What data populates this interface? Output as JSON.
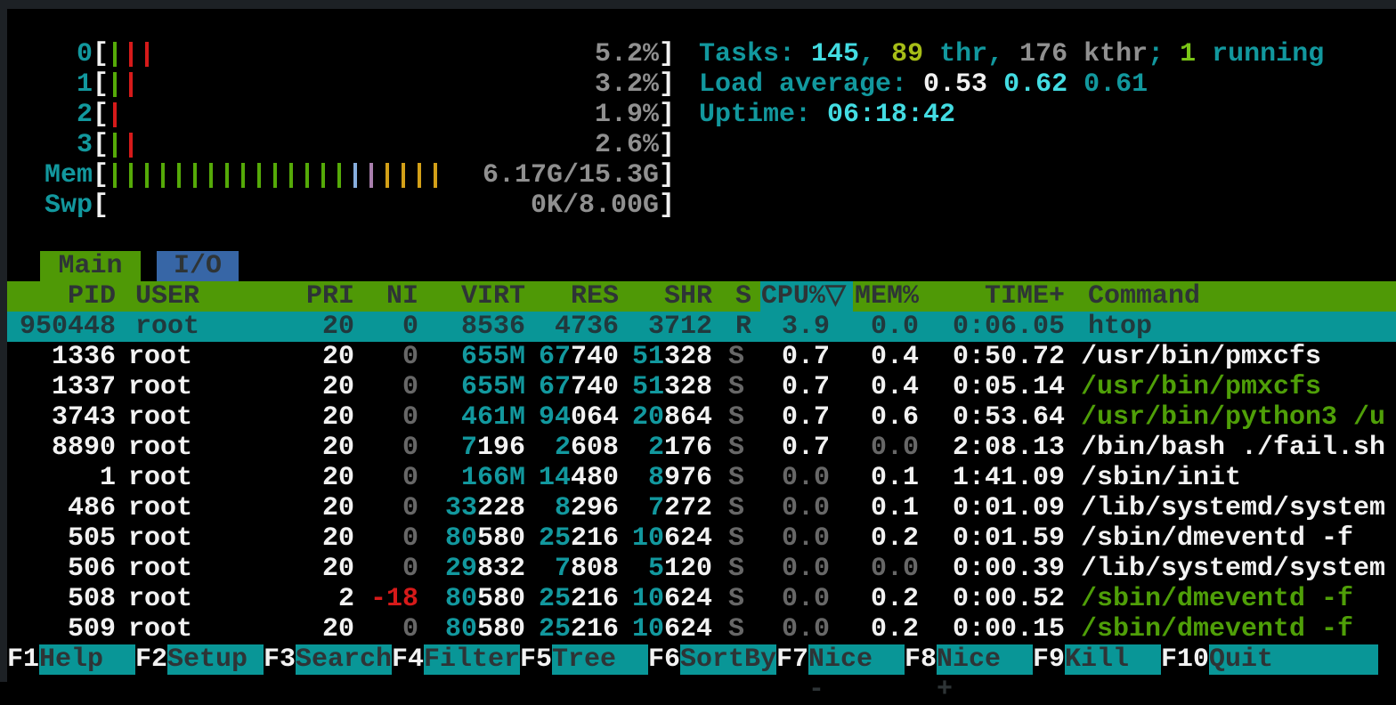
{
  "app": "htop",
  "palette": {
    "background": "#000000",
    "teal_text": "#12989e",
    "bright_cyan": "#43dce2",
    "white": "#f2f2f2",
    "gray": "#909090",
    "green_command": "#4f9f08",
    "red": "#d61a1a",
    "header_green_bg": "#4f9906",
    "tab_blue_bg": "#3766a6",
    "selection_teal_bg": "#099697",
    "mem_bar_blue": "#87aede",
    "mem_bar_purple": "#a97fad",
    "mem_bar_yellow": "#d3a018"
  },
  "meters": [
    {
      "label": "0",
      "value_text": "5.2%",
      "bars": [
        "green",
        "red",
        "red"
      ]
    },
    {
      "label": "1",
      "value_text": "3.2%",
      "bars": [
        "green",
        "red"
      ]
    },
    {
      "label": "2",
      "value_text": "1.9%",
      "bars": [
        "red"
      ]
    },
    {
      "label": "3",
      "value_text": "2.6%",
      "bars": [
        "green",
        "red"
      ]
    },
    {
      "label": "Mem",
      "value_text": "6.17G/15.3G",
      "bars": [
        "green",
        "green",
        "green",
        "green",
        "green",
        "green",
        "green",
        "green",
        "green",
        "green",
        "green",
        "green",
        "green",
        "green",
        "green",
        "blue",
        "purple",
        "yellow",
        "yellow",
        "yellow",
        "yellow"
      ]
    },
    {
      "label": "Swp",
      "value_text": "0K/8.00G",
      "bars": []
    }
  ],
  "header_info": {
    "lines": [
      {
        "name": "tasks-summary",
        "segments": [
          [
            "Tasks: ",
            "teal"
          ],
          [
            "145",
            "bcyan"
          ],
          [
            ", ",
            "teal"
          ],
          [
            "89",
            "lime"
          ],
          [
            " thr",
            "teal"
          ],
          [
            ", ",
            "teal"
          ],
          [
            "176 kthr",
            "gray"
          ],
          [
            "; ",
            "teal"
          ],
          [
            "1",
            "lgreen"
          ],
          [
            " running",
            "teal"
          ]
        ]
      },
      {
        "name": "load-average",
        "segments": [
          [
            "Load average: ",
            "teal"
          ],
          [
            "0.53 ",
            "white"
          ],
          [
            "0.62 ",
            "bcyan"
          ],
          [
            "0.61",
            "teal"
          ]
        ]
      },
      {
        "name": "uptime",
        "segments": [
          [
            "Uptime: ",
            "teal"
          ],
          [
            "06:18:42",
            "bcyan"
          ]
        ]
      }
    ]
  },
  "tabs": [
    {
      "label": "Main",
      "active": true
    },
    {
      "label": "I/O",
      "active": false
    }
  ],
  "table": {
    "sort_column": "cpu",
    "sort_arrow": "▽",
    "columns": [
      {
        "key": "pid",
        "label": "PID"
      },
      {
        "key": "user",
        "label": "USER"
      },
      {
        "key": "pri",
        "label": "PRI"
      },
      {
        "key": "ni",
        "label": "NI"
      },
      {
        "key": "virt",
        "label": "VIRT"
      },
      {
        "key": "res",
        "label": "RES"
      },
      {
        "key": "shr",
        "label": "SHR"
      },
      {
        "key": "s",
        "label": "S"
      },
      {
        "key": "cpu",
        "label": "CPU%"
      },
      {
        "key": "mem",
        "label": "MEM%"
      },
      {
        "key": "time",
        "label": "TIME+"
      },
      {
        "key": "cmd",
        "label": "Command"
      }
    ],
    "rows": [
      {
        "selected": true,
        "pid": "950448",
        "user": "root",
        "pri": "20",
        "ni": [
          [
            "0",
            "dim"
          ]
        ],
        "virt": [
          [
            "8536",
            "white"
          ]
        ],
        "res": [
          [
            "4736",
            "white"
          ]
        ],
        "shr": [
          [
            "3712",
            "white"
          ]
        ],
        "s": [
          [
            "R",
            "dim"
          ]
        ],
        "cpu": [
          [
            "3.9",
            "white"
          ]
        ],
        "mem": [
          [
            "0.0",
            "dim"
          ]
        ],
        "time": [
          [
            "0:06.05",
            "white"
          ]
        ],
        "cmd": [
          [
            "htop",
            "white"
          ]
        ]
      },
      {
        "pid": "1336",
        "user": "root",
        "pri": "20",
        "ni": [
          [
            "0",
            "dim"
          ]
        ],
        "virt": [
          [
            "655M",
            "cyan"
          ]
        ],
        "res": [
          [
            "67",
            "cyan"
          ],
          [
            "740",
            "white"
          ]
        ],
        "shr": [
          [
            "51",
            "cyan"
          ],
          [
            "328",
            "white"
          ]
        ],
        "s": [
          [
            "S",
            "dim"
          ]
        ],
        "cpu": [
          [
            "0.7",
            "white"
          ]
        ],
        "mem": [
          [
            "0.4",
            "white"
          ]
        ],
        "time": [
          [
            "0:50.72",
            "white"
          ]
        ],
        "cmd": [
          [
            "/usr/bin/pmxcfs",
            "white"
          ]
        ]
      },
      {
        "pid": "1337",
        "user": "root",
        "pri": "20",
        "ni": [
          [
            "0",
            "dim"
          ]
        ],
        "virt": [
          [
            "655M",
            "cyan"
          ]
        ],
        "res": [
          [
            "67",
            "cyan"
          ],
          [
            "740",
            "white"
          ]
        ],
        "shr": [
          [
            "51",
            "cyan"
          ],
          [
            "328",
            "white"
          ]
        ],
        "s": [
          [
            "S",
            "dim"
          ]
        ],
        "cpu": [
          [
            "0.7",
            "white"
          ]
        ],
        "mem": [
          [
            "0.4",
            "white"
          ]
        ],
        "time": [
          [
            "0:05.14",
            "white"
          ]
        ],
        "cmd": [
          [
            "/usr/bin/pmxcfs",
            "green"
          ]
        ]
      },
      {
        "pid": "3743",
        "user": "root",
        "pri": "20",
        "ni": [
          [
            "0",
            "dim"
          ]
        ],
        "virt": [
          [
            "461M",
            "cyan"
          ]
        ],
        "res": [
          [
            "94",
            "cyan"
          ],
          [
            "064",
            "white"
          ]
        ],
        "shr": [
          [
            "20",
            "cyan"
          ],
          [
            "864",
            "white"
          ]
        ],
        "s": [
          [
            "S",
            "dim"
          ]
        ],
        "cpu": [
          [
            "0.7",
            "white"
          ]
        ],
        "mem": [
          [
            "0.6",
            "white"
          ]
        ],
        "time": [
          [
            "0:53.64",
            "white"
          ]
        ],
        "cmd": [
          [
            "/usr/bin/python3 /u",
            "green"
          ]
        ]
      },
      {
        "pid": "8890",
        "user": "root",
        "pri": "20",
        "ni": [
          [
            "0",
            "dim"
          ]
        ],
        "virt": [
          [
            "7",
            "cyan"
          ],
          [
            "196",
            "white"
          ]
        ],
        "res": [
          [
            "2",
            "cyan"
          ],
          [
            "608",
            "white"
          ]
        ],
        "shr": [
          [
            "2",
            "cyan"
          ],
          [
            "176",
            "white"
          ]
        ],
        "s": [
          [
            "S",
            "dim"
          ]
        ],
        "cpu": [
          [
            "0.7",
            "white"
          ]
        ],
        "mem": [
          [
            "0.0",
            "dim"
          ]
        ],
        "time": [
          [
            "2:08.13",
            "white"
          ]
        ],
        "cmd": [
          [
            "/bin/bash ./fail.sh",
            "white"
          ]
        ]
      },
      {
        "pid": "1",
        "user": "root",
        "pri": "20",
        "ni": [
          [
            "0",
            "dim"
          ]
        ],
        "virt": [
          [
            "166M",
            "cyan"
          ]
        ],
        "res": [
          [
            "14",
            "cyan"
          ],
          [
            "480",
            "white"
          ]
        ],
        "shr": [
          [
            "8",
            "cyan"
          ],
          [
            "976",
            "white"
          ]
        ],
        "s": [
          [
            "S",
            "dim"
          ]
        ],
        "cpu": [
          [
            "0.0",
            "dim"
          ]
        ],
        "mem": [
          [
            "0.1",
            "white"
          ]
        ],
        "time": [
          [
            "1:41.09",
            "white"
          ]
        ],
        "cmd": [
          [
            "/sbin/init",
            "white"
          ]
        ]
      },
      {
        "pid": "486",
        "user": "root",
        "pri": "20",
        "ni": [
          [
            "0",
            "dim"
          ]
        ],
        "virt": [
          [
            "33",
            "cyan"
          ],
          [
            "228",
            "white"
          ]
        ],
        "res": [
          [
            "8",
            "cyan"
          ],
          [
            "296",
            "white"
          ]
        ],
        "shr": [
          [
            "7",
            "cyan"
          ],
          [
            "272",
            "white"
          ]
        ],
        "s": [
          [
            "S",
            "dim"
          ]
        ],
        "cpu": [
          [
            "0.0",
            "dim"
          ]
        ],
        "mem": [
          [
            "0.1",
            "white"
          ]
        ],
        "time": [
          [
            "0:01.09",
            "white"
          ]
        ],
        "cmd": [
          [
            "/lib/systemd/system",
            "white"
          ]
        ]
      },
      {
        "pid": "505",
        "user": "root",
        "pri": "20",
        "ni": [
          [
            "0",
            "dim"
          ]
        ],
        "virt": [
          [
            "80",
            "cyan"
          ],
          [
            "580",
            "white"
          ]
        ],
        "res": [
          [
            "25",
            "cyan"
          ],
          [
            "216",
            "white"
          ]
        ],
        "shr": [
          [
            "10",
            "cyan"
          ],
          [
            "624",
            "white"
          ]
        ],
        "s": [
          [
            "S",
            "dim"
          ]
        ],
        "cpu": [
          [
            "0.0",
            "dim"
          ]
        ],
        "mem": [
          [
            "0.2",
            "white"
          ]
        ],
        "time": [
          [
            "0:01.59",
            "white"
          ]
        ],
        "cmd": [
          [
            "/sbin/dmeventd -f",
            "white"
          ]
        ]
      },
      {
        "pid": "506",
        "user": "root",
        "pri": "20",
        "ni": [
          [
            "0",
            "dim"
          ]
        ],
        "virt": [
          [
            "29",
            "cyan"
          ],
          [
            "832",
            "white"
          ]
        ],
        "res": [
          [
            "7",
            "cyan"
          ],
          [
            "808",
            "white"
          ]
        ],
        "shr": [
          [
            "5",
            "cyan"
          ],
          [
            "120",
            "white"
          ]
        ],
        "s": [
          [
            "S",
            "dim"
          ]
        ],
        "cpu": [
          [
            "0.0",
            "dim"
          ]
        ],
        "mem": [
          [
            "0.0",
            "dim"
          ]
        ],
        "time": [
          [
            "0:00.39",
            "white"
          ]
        ],
        "cmd": [
          [
            "/lib/systemd/system",
            "white"
          ]
        ]
      },
      {
        "pid": "508",
        "user": "root",
        "pri": "2",
        "ni": [
          [
            "-18",
            "red"
          ]
        ],
        "virt": [
          [
            "80",
            "cyan"
          ],
          [
            "580",
            "white"
          ]
        ],
        "res": [
          [
            "25",
            "cyan"
          ],
          [
            "216",
            "white"
          ]
        ],
        "shr": [
          [
            "10",
            "cyan"
          ],
          [
            "624",
            "white"
          ]
        ],
        "s": [
          [
            "S",
            "dim"
          ]
        ],
        "cpu": [
          [
            "0.0",
            "dim"
          ]
        ],
        "mem": [
          [
            "0.2",
            "white"
          ]
        ],
        "time": [
          [
            "0:00.52",
            "white"
          ]
        ],
        "cmd": [
          [
            "/sbin/dmeventd -f",
            "green"
          ]
        ]
      },
      {
        "pid": "509",
        "user": "root",
        "pri": "20",
        "ni": [
          [
            "0",
            "dim"
          ]
        ],
        "virt": [
          [
            "80",
            "cyan"
          ],
          [
            "580",
            "white"
          ]
        ],
        "res": [
          [
            "25",
            "cyan"
          ],
          [
            "216",
            "white"
          ]
        ],
        "shr": [
          [
            "10",
            "cyan"
          ],
          [
            "624",
            "white"
          ]
        ],
        "s": [
          [
            "S",
            "dim"
          ]
        ],
        "cpu": [
          [
            "0.0",
            "dim"
          ]
        ],
        "mem": [
          [
            "0.2",
            "white"
          ]
        ],
        "time": [
          [
            "0:00.15",
            "white"
          ]
        ],
        "cmd": [
          [
            "/sbin/dmeventd -f",
            "green"
          ]
        ]
      }
    ]
  },
  "fkeys": [
    {
      "key": "F1",
      "label": "Help"
    },
    {
      "key": "F2",
      "label": "Setup"
    },
    {
      "key": "F3",
      "label": "Search"
    },
    {
      "key": "F4",
      "label": "Filter"
    },
    {
      "key": "F5",
      "label": "Tree"
    },
    {
      "key": "F6",
      "label": "SortBy"
    },
    {
      "key": "F7",
      "label": "Nice -"
    },
    {
      "key": "F8",
      "label": "Nice +"
    },
    {
      "key": "F9",
      "label": "Kill"
    },
    {
      "key": "F10",
      "label": "Quit"
    }
  ]
}
